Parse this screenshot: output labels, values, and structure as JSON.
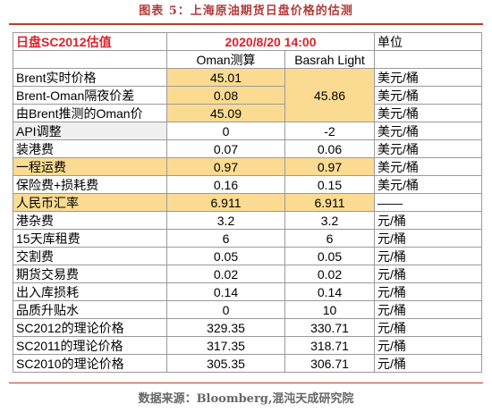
{
  "figure_title": "图表 5：上海原油期货日盘价格的估测",
  "header": {
    "label": "日盘SC2012估值",
    "datetime": "2020/8/20 14:00",
    "unit": "单位"
  },
  "subheader": {
    "oman": "Oman测算",
    "basrah": "Basrah Light"
  },
  "rows": [
    {
      "label": "Brent实时价格",
      "oman": "45.01",
      "basrah": "",
      "unit": "美元/桶"
    },
    {
      "label": "Brent-Oman隔夜价差",
      "oman": "0.08",
      "basrah": "45.86",
      "unit": "美元/桶"
    },
    {
      "label": "由Brent推测的Oman价",
      "oman": "45.09",
      "basrah": "",
      "unit": "美元/桶"
    },
    {
      "label": "API调整",
      "oman": "0",
      "basrah": "-2",
      "unit": "美元/桶"
    },
    {
      "label": "装港费",
      "oman": "0.07",
      "basrah": "0.06",
      "unit": "美元/桶"
    },
    {
      "label": "一程运费",
      "oman": "0.97",
      "basrah": "0.97",
      "unit": "美元/桶"
    },
    {
      "label": "保险费+损耗费",
      "oman": "0.16",
      "basrah": "0.15",
      "unit": "美元/桶"
    },
    {
      "label": "人民币汇率",
      "oman": "6.911",
      "basrah": "6.911",
      "unit": "——"
    },
    {
      "label": "港杂费",
      "oman": "3.2",
      "basrah": "3.2",
      "unit": "元/桶"
    },
    {
      "label": "15天库租费",
      "oman": "6",
      "basrah": "6",
      "unit": "元/桶"
    },
    {
      "label": "交割费",
      "oman": "0.05",
      "basrah": "0.05",
      "unit": "元/桶"
    },
    {
      "label": "期货交易费",
      "oman": "0.02",
      "basrah": "0.02",
      "unit": "元/桶"
    },
    {
      "label": "出入库损耗",
      "oman": "0.14",
      "basrah": "0.14",
      "unit": "元/桶"
    },
    {
      "label": "品质升贴水",
      "oman": "0",
      "basrah": "10",
      "unit": "元/桶"
    },
    {
      "label": "SC2012的理论价格",
      "oman": "329.35",
      "basrah": "330.71",
      "unit": "元/桶"
    },
    {
      "label": "SC2011的理论价格",
      "oman": "317.35",
      "basrah": "318.71",
      "unit": "元/桶"
    },
    {
      "label": "SC2010的理论价格",
      "oman": "305.35",
      "basrah": "306.71",
      "unit": "元/桶"
    }
  ],
  "source": "数据来源：Bloomberg,混沌天成研究院",
  "colors": {
    "highlight": "#fbdb92",
    "accent_red": "#d9232d",
    "title_red": "#b23a3a"
  }
}
